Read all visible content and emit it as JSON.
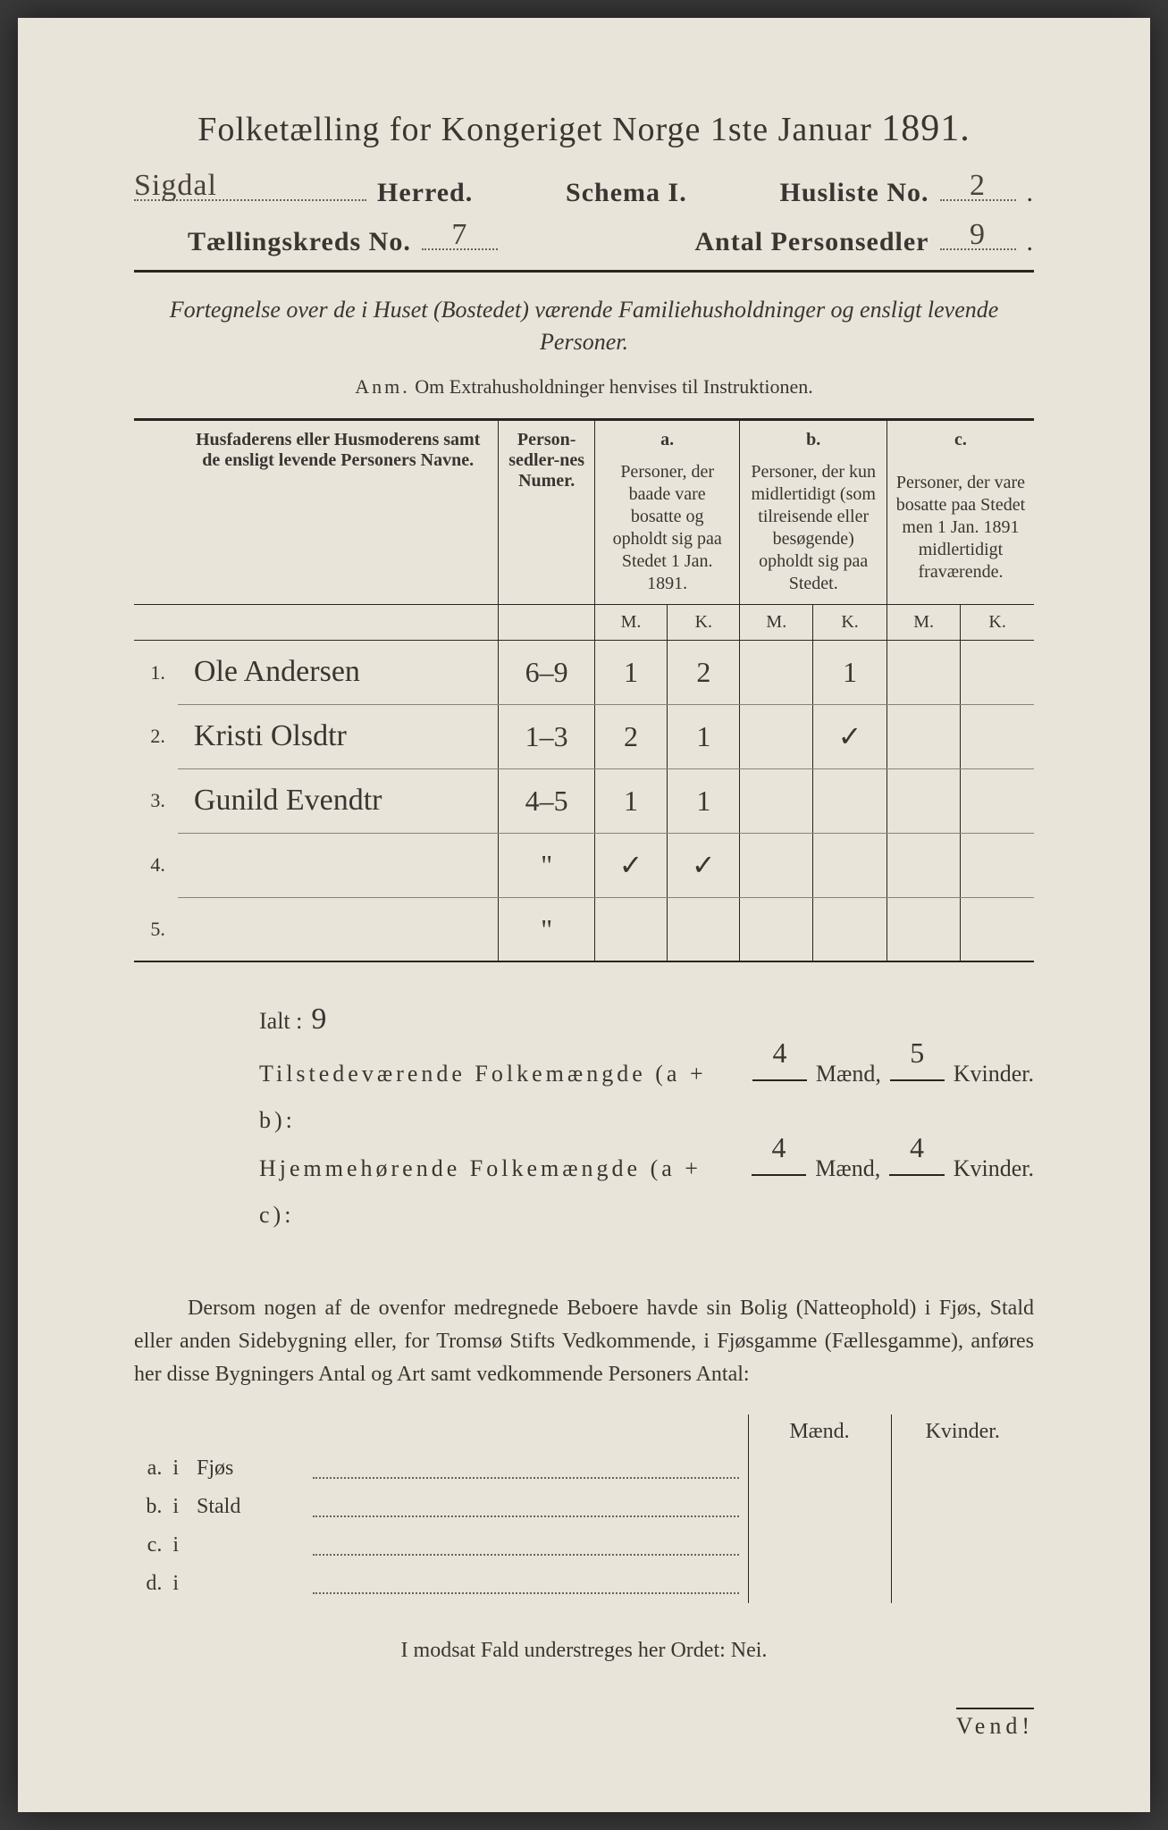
{
  "title": {
    "main": "Folketælling for Kongeriget Norge 1ste Januar",
    "year": "1891."
  },
  "header": {
    "herred_value": "Sigdal",
    "herred_label": "Herred.",
    "schema_label": "Schema I.",
    "husliste_label": "Husliste No.",
    "husliste_value": "2",
    "kreds_label": "Tællingskreds No.",
    "kreds_value": "7",
    "sedler_label": "Antal Personsedler",
    "sedler_value": "9"
  },
  "subtitle": "Fortegnelse over de i Huset (Bostedet) værende Familiehusholdninger og ensligt levende Personer.",
  "anm": {
    "label": "Anm.",
    "text": "Om Extrahusholdninger henvises til Instruktionen."
  },
  "table": {
    "col_name": "Husfaderens eller Husmoderens samt de ensligt levende Personers Navne.",
    "col_ps": "Person-sedler-nes Numer.",
    "col_a_tag": "a.",
    "col_a": "Personer, der baade vare bosatte og opholdt sig paa Stedet 1 Jan. 1891.",
    "col_b_tag": "b.",
    "col_b": "Personer, der kun midlertidigt (som tilreisende eller besøgende) opholdt sig paa Stedet.",
    "col_c_tag": "c.",
    "col_c": "Personer, der vare bosatte paa Stedet men 1 Jan. 1891 midlertidigt fraværende.",
    "mk_m": "M.",
    "mk_k": "K.",
    "rows": [
      {
        "n": "1.",
        "name": "Ole Andersen",
        "ps": "6–9",
        "am": "1",
        "ak": "2",
        "bm": "",
        "bk": "1",
        "cm": "",
        "ck": ""
      },
      {
        "n": "2.",
        "name": "Kristi Olsdtr",
        "ps": "1–3",
        "am": "2",
        "ak": "1",
        "bm": "",
        "bk": "✓",
        "cm": "",
        "ck": ""
      },
      {
        "n": "3.",
        "name": "Gunild Evendtr",
        "ps": "4–5",
        "am": "1",
        "ak": "1",
        "bm": "",
        "bk": "",
        "cm": "",
        "ck": ""
      },
      {
        "n": "4.",
        "name": "",
        "ps": "\"",
        "am": "✓",
        "ak": "✓",
        "bm": "",
        "bk": "",
        "cm": "",
        "ck": ""
      },
      {
        "n": "5.",
        "name": "",
        "ps": "\"",
        "am": "",
        "ak": "",
        "bm": "",
        "bk": "",
        "cm": "",
        "ck": ""
      }
    ]
  },
  "totals": {
    "ialt_label": "Ialt :",
    "ialt_value": "9",
    "line_ab_label": "Tilstedeværende Folkemængde (a + b):",
    "line_ab_m": "4",
    "line_ab_k": "5",
    "line_ac_label": "Hjemmehørende Folkemængde (a + c):",
    "line_ac_m": "4",
    "line_ac_k": "4",
    "maend": "Mænd,",
    "kvinder": "Kvinder."
  },
  "para": "Dersom nogen af de ovenfor medregnede Beboere havde sin Bolig (Natteophold) i Fjøs, Stald eller anden Sidebygning eller, for Tromsø Stifts Vedkommende, i Fjøsgamme (Fællesgamme), anføres her disse Bygningers Antal og Art samt vedkommende Personers Antal:",
  "outbuild": {
    "hdr_m": "Mænd.",
    "hdr_k": "Kvinder.",
    "rows": [
      {
        "lab": "a.",
        "i": "i",
        "kind": "Fjøs"
      },
      {
        "lab": "b.",
        "i": "i",
        "kind": "Stald"
      },
      {
        "lab": "c.",
        "i": "i",
        "kind": ""
      },
      {
        "lab": "d.",
        "i": "i",
        "kind": ""
      }
    ]
  },
  "nei": "I modsat Fald understreges her Ordet: Nei.",
  "vend": "Vend!",
  "colors": {
    "paper": "#e8e4da",
    "ink": "#3a3530",
    "rule": "#2a2520",
    "hand": "#4a4238"
  }
}
